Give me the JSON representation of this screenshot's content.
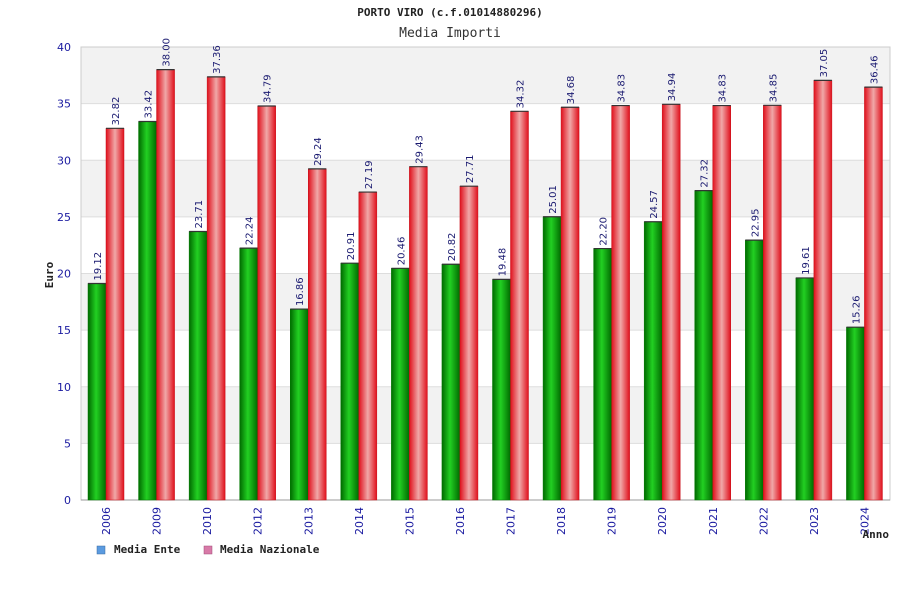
{
  "chart_data": {
    "type": "bar",
    "title": "PORTO VIRO (c.f.01014880296)",
    "subtitle": "Media Importi",
    "xlabel": "Anno",
    "ylabel": "Euro",
    "ylim": [
      0,
      40
    ],
    "yticks": [
      "0",
      "5",
      "10",
      "15",
      "20",
      "25",
      "30",
      "35",
      "40"
    ],
    "grid": true,
    "legend_position": "bottom-left",
    "categories": [
      "2006",
      "2009",
      "2010",
      "2012",
      "2013",
      "2014",
      "2015",
      "2016",
      "2017",
      "2018",
      "2019",
      "2020",
      "2021",
      "2022",
      "2023",
      "2024"
    ],
    "series": [
      {
        "name": "Media Ente",
        "color": "#00aa00",
        "legend_color": "#5b9be0",
        "values": [
          19.12,
          33.42,
          23.71,
          22.24,
          16.86,
          20.91,
          20.46,
          20.82,
          19.48,
          25.01,
          22.2,
          24.57,
          27.32,
          22.95,
          19.61,
          15.26
        ],
        "labels": [
          "19.12",
          "33.42",
          "23.71",
          "22.24",
          "16.86",
          "20.91",
          "20.46",
          "20.82",
          "19.48",
          "25.01",
          "22.20",
          "24.57",
          "27.32",
          "22.95",
          "19.61",
          "15.26"
        ]
      },
      {
        "name": "Media Nazionale",
        "color": "#e8202a",
        "legend_color": "#d87aa8",
        "values": [
          32.82,
          38.0,
          37.36,
          34.79,
          29.24,
          27.19,
          29.43,
          27.71,
          34.32,
          34.68,
          34.83,
          34.94,
          34.83,
          34.85,
          37.05,
          36.46
        ],
        "labels": [
          "32.82",
          "38.00",
          "37.36",
          "34.79",
          "29.24",
          "27.19",
          "29.43",
          "27.71",
          "34.32",
          "34.68",
          "34.83",
          "34.94",
          "34.83",
          "34.85",
          "37.05",
          "36.46"
        ]
      }
    ]
  }
}
